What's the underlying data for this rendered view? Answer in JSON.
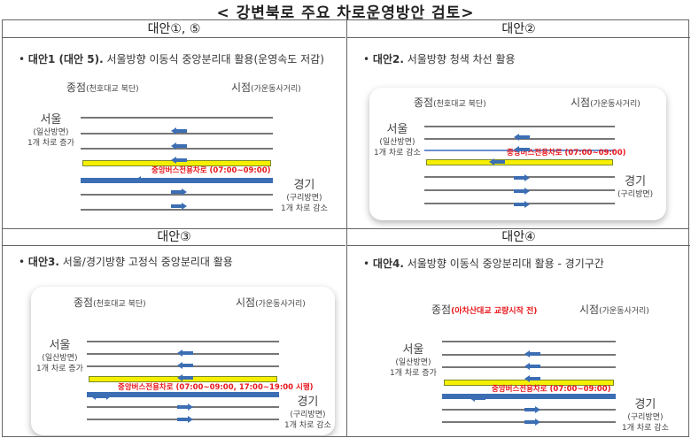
{
  "title": "< 강변북로 주요 차로운영방안 검토>",
  "colors": {
    "lane_line": "#777777",
    "bus_lane": "#f6f000",
    "median": "#3c6eb4",
    "arrow": "#3c6eb4",
    "highlight_text": "#e8161a"
  },
  "panels": [
    {
      "header": "대안①, ⑤",
      "title_bold": "대안1 (대안 5).",
      "title_rest": " 서울방향 이동식 중앙분리대 활용(운영속도 저감)",
      "end_label": "종점",
      "end_sub": "(천호대교 북단)",
      "start_label": "시점",
      "start_sub": "(가운동사거리)",
      "seoul": "서울",
      "seoul_sub": "(일산방면)",
      "seoul_note": "1개 차로 증가",
      "gyeonggi": "경기",
      "gyeonggi_sub": "(구리방면)",
      "gyeonggi_note": "1개 차로 감소",
      "bus_lane": "중앙버스전용차로 (07:00~09:00)",
      "bus_arrow": "arrow-left"
    },
    {
      "header": "대안②",
      "title_bold": "대안2.",
      "title_rest": " 서울방향 청색 차선 활용",
      "end_label": "종점",
      "end_sub": "(천호대교 북단)",
      "start_label": "시점",
      "start_sub": "(가운동사거리)",
      "seoul": "서울",
      "seoul_sub": "(일산방면)",
      "seoul_note": "1개 차로 감소",
      "gyeonggi": "경기",
      "gyeonggi_sub": "(구리방면)",
      "gyeonggi_note": "",
      "bus_lane": "중앙버스전용차로 (07:00~09:00)",
      "bus_arrow": "arrow-left"
    },
    {
      "header": "대안③",
      "title_bold": "대안3.",
      "title_rest": " 서울/경기방향 고정식 중앙분리대 활용",
      "end_label": "종점",
      "end_sub": "(천호대교 북단)",
      "start_label": "시점",
      "start_sub": "(가운동사거리)",
      "seoul": "서울",
      "seoul_sub": "(일산방면)",
      "seoul_note": "1개 차로 증가",
      "gyeonggi": "경기",
      "gyeonggi_sub": "(구리방면)",
      "gyeonggi_note": "1개 차로 감소",
      "bus_lane": "중앙버스전용차로 (07:00~09:00, 17:00~19:00 시행)",
      "bus_arrow": "arrow-both"
    },
    {
      "header": "대안④",
      "title_bold": "대안4.",
      "title_rest": " 서울방향 이동식 중앙분리대 활용  -  경기구간",
      "end_label": "종점",
      "end_sub": "(아차산대교 교량시작 전)",
      "end_sub_highlight": true,
      "start_label": "시점",
      "start_sub": "(가운동사거리)",
      "seoul": "서울",
      "seoul_sub": "(일산방면)",
      "seoul_note": "1개 차로 증가",
      "gyeonggi": "경기",
      "gyeonggi_sub": "(구리방면)",
      "gyeonggi_note": "1개 차로 감소",
      "bus_lane": "중앙버스전용차로 (07:00~09:00)",
      "bus_arrow": "arrow-left"
    }
  ]
}
